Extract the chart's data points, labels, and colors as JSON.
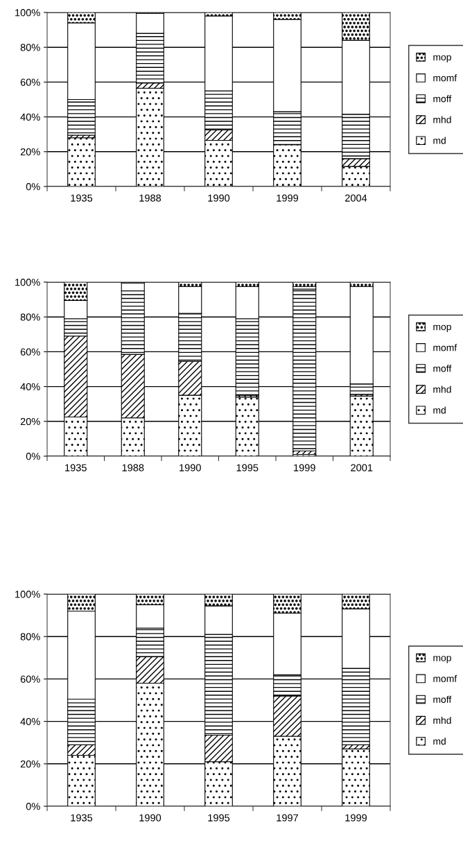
{
  "chart_data": [
    {
      "type": "bar",
      "stacked": true,
      "categories": [
        "1935",
        "1988",
        "1990",
        "1999",
        "2004"
      ],
      "ylim": [
        0,
        100
      ],
      "yticks": [
        {
          "value": 0,
          "label": "0%"
        },
        {
          "value": 20,
          "label": "20%"
        },
        {
          "value": 40,
          "label": "40%"
        },
        {
          "value": 60,
          "label": "60%"
        },
        {
          "value": 80,
          "label": "80%"
        },
        {
          "value": 100,
          "label": "100%"
        }
      ],
      "grid": "y",
      "legend": "right",
      "series": [
        {
          "name": "md",
          "color": "#000000",
          "values": [
            28,
            56.5,
            26.5,
            24,
            11.5
          ]
        },
        {
          "name": "mhd",
          "color": "#000000",
          "values": [
            1.5,
            3,
            6,
            null,
            4.5
          ]
        },
        {
          "name": "moff",
          "color": "#000000",
          "values": [
            20.5,
            28.5,
            22.5,
            19,
            25.5
          ]
        },
        {
          "name": "momf",
          "color": "#ffffff",
          "values": [
            44,
            11.5,
            43,
            53,
            42.5
          ]
        },
        {
          "name": "mop",
          "color": "#000000",
          "values": [
            6,
            0.5,
            2,
            4,
            16
          ]
        }
      ]
    },
    {
      "type": "bar",
      "stacked": true,
      "categories": [
        "1935",
        "1988",
        "1990",
        "1995",
        "1999",
        "2001"
      ],
      "ylim": [
        0,
        100
      ],
      "yticks": [
        {
          "value": 0,
          "label": "0%"
        },
        {
          "value": 20,
          "label": "20%"
        },
        {
          "value": 40,
          "label": "40%"
        },
        {
          "value": 60,
          "label": "60%"
        },
        {
          "value": 80,
          "label": "80%"
        },
        {
          "value": 100,
          "label": "100%"
        }
      ],
      "grid": "y",
      "legend": "right",
      "series": [
        {
          "name": "md",
          "color": "#000000",
          "values": [
            22.5,
            22,
            35,
            34,
            1,
            34.5
          ]
        },
        {
          "name": "mhd",
          "color": "#000000",
          "values": [
            46.5,
            36.5,
            19.5,
            1,
            2,
            1
          ]
        },
        {
          "name": "moff",
          "color": "#000000",
          "values": [
            10,
            36.5,
            27.5,
            44,
            93,
            6
          ]
        },
        {
          "name": "momf",
          "color": "#ffffff",
          "values": [
            10.5,
            4.5,
            15.5,
            18.5,
            1.5,
            56
          ]
        },
        {
          "name": "mop",
          "color": "#000000",
          "values": [
            10.5,
            0.5,
            2.5,
            2.5,
            2.5,
            2.5
          ]
        }
      ]
    },
    {
      "type": "bar",
      "stacked": true,
      "categories": [
        "1935",
        "1990",
        "1995",
        "1997",
        "1999"
      ],
      "ylim": [
        0,
        100
      ],
      "yticks": [
        {
          "value": 0,
          "label": "0%"
        },
        {
          "value": 20,
          "label": "20%"
        },
        {
          "value": 40,
          "label": "40%"
        },
        {
          "value": 60,
          "label": "60%"
        },
        {
          "value": 80,
          "label": "80%"
        },
        {
          "value": 100,
          "label": "100%"
        }
      ],
      "grid": "y",
      "legend": "right",
      "series": [
        {
          "name": "md",
          "color": "#000000",
          "values": [
            24,
            58,
            21,
            33,
            27
          ]
        },
        {
          "name": "mhd",
          "color": "#000000",
          "values": [
            5,
            12.5,
            12.5,
            19,
            2
          ]
        },
        {
          "name": "moff",
          "color": "#000000",
          "values": [
            21.5,
            13.5,
            47.5,
            10,
            36
          ]
        },
        {
          "name": "momf",
          "color": "#ffffff",
          "values": [
            41.5,
            11,
            13.5,
            29,
            28
          ]
        },
        {
          "name": "mop",
          "color": "#000000",
          "values": [
            8,
            5,
            5.5,
            9,
            7
          ]
        }
      ]
    }
  ]
}
